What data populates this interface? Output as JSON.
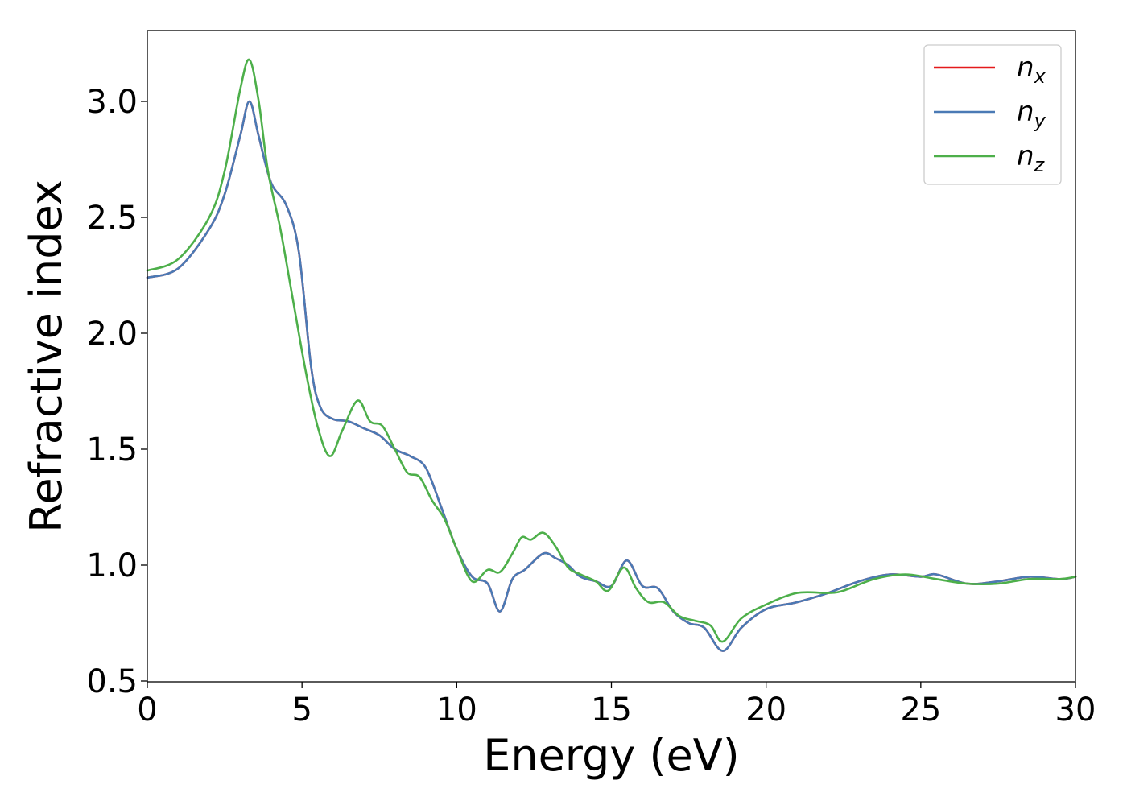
{
  "chart_data": {
    "type": "line",
    "xlabel": "Energy (eV)",
    "ylabel": "Refractive index",
    "xlim": [
      0,
      30
    ],
    "ylim": [
      0.5,
      3.3
    ],
    "xticks": [
      "0",
      "5",
      "10",
      "15",
      "20",
      "25",
      "30"
    ],
    "yticks": [
      "0.5",
      "1.0",
      "1.5",
      "2.0",
      "2.5",
      "3.0"
    ],
    "grid": false,
    "legend_position": "top-right",
    "series": [
      {
        "name": "n",
        "subscript": "x",
        "color": "#e41a1c",
        "x": [
          0,
          1,
          2,
          2.5,
          3,
          3.3,
          3.6,
          4.0,
          4.5,
          4.9,
          5.3,
          5.6,
          6.0,
          6.5,
          7.0,
          7.5,
          8.0,
          8.5,
          9.0,
          9.5,
          10.0,
          10.5,
          11.0,
          11.4,
          11.8,
          12.2,
          12.8,
          13.2,
          13.6,
          14.0,
          14.5,
          15.0,
          15.5,
          16.0,
          16.5,
          17.0,
          17.5,
          18.0,
          18.6,
          19.2,
          20.0,
          21.0,
          22.0,
          23.0,
          24.0,
          25.0,
          25.5,
          26.5,
          27.5,
          28.5,
          29.5,
          30
        ],
        "y": [
          2.24,
          2.28,
          2.45,
          2.6,
          2.85,
          3.0,
          2.85,
          2.65,
          2.55,
          2.35,
          1.85,
          1.68,
          1.63,
          1.62,
          1.59,
          1.56,
          1.5,
          1.47,
          1.42,
          1.25,
          1.07,
          0.95,
          0.92,
          0.8,
          0.94,
          0.98,
          1.05,
          1.03,
          1.0,
          0.95,
          0.93,
          0.91,
          1.02,
          0.91,
          0.9,
          0.8,
          0.75,
          0.73,
          0.63,
          0.73,
          0.81,
          0.84,
          0.88,
          0.93,
          0.96,
          0.95,
          0.96,
          0.92,
          0.93,
          0.95,
          0.94,
          0.95
        ]
      },
      {
        "name": "n",
        "subscript": "y",
        "color": "#4a7ab5",
        "x": [
          0,
          1,
          2,
          2.5,
          3,
          3.3,
          3.6,
          4.0,
          4.5,
          4.9,
          5.3,
          5.6,
          6.0,
          6.5,
          7.0,
          7.5,
          8.0,
          8.5,
          9.0,
          9.5,
          10.0,
          10.5,
          11.0,
          11.4,
          11.8,
          12.2,
          12.8,
          13.2,
          13.6,
          14.0,
          14.5,
          15.0,
          15.5,
          16.0,
          16.5,
          17.0,
          17.5,
          18.0,
          18.6,
          19.2,
          20.0,
          21.0,
          22.0,
          23.0,
          24.0,
          25.0,
          25.5,
          26.5,
          27.5,
          28.5,
          29.5,
          30
        ],
        "y": [
          2.24,
          2.28,
          2.45,
          2.6,
          2.85,
          3.0,
          2.85,
          2.65,
          2.55,
          2.35,
          1.85,
          1.68,
          1.63,
          1.62,
          1.59,
          1.56,
          1.5,
          1.47,
          1.42,
          1.25,
          1.07,
          0.95,
          0.92,
          0.8,
          0.94,
          0.98,
          1.05,
          1.03,
          1.0,
          0.95,
          0.93,
          0.91,
          1.02,
          0.91,
          0.9,
          0.8,
          0.75,
          0.73,
          0.63,
          0.73,
          0.81,
          0.84,
          0.88,
          0.93,
          0.96,
          0.95,
          0.96,
          0.92,
          0.93,
          0.95,
          0.94,
          0.95
        ]
      },
      {
        "name": "n",
        "subscript": "z",
        "color": "#4daf4a",
        "x": [
          0,
          1,
          2,
          2.5,
          3,
          3.3,
          3.6,
          3.9,
          4.3,
          4.7,
          5.1,
          5.5,
          5.9,
          6.3,
          6.8,
          7.2,
          7.6,
          8.0,
          8.4,
          8.8,
          9.2,
          9.6,
          10.0,
          10.5,
          11.0,
          11.4,
          11.8,
          12.1,
          12.4,
          12.8,
          13.2,
          13.6,
          14.0,
          14.5,
          14.9,
          15.4,
          15.8,
          16.2,
          16.7,
          17.2,
          17.7,
          18.2,
          18.6,
          19.2,
          20.0,
          21.0,
          22.0,
          22.5,
          23.5,
          24.5,
          25.5,
          26.5,
          27.5,
          28.5,
          29.5,
          30
        ],
        "y": [
          2.27,
          2.32,
          2.5,
          2.7,
          3.05,
          3.18,
          3.0,
          2.7,
          2.45,
          2.15,
          1.85,
          1.6,
          1.47,
          1.58,
          1.71,
          1.62,
          1.6,
          1.5,
          1.4,
          1.38,
          1.28,
          1.2,
          1.07,
          0.93,
          0.98,
          0.97,
          1.05,
          1.12,
          1.11,
          1.14,
          1.08,
          0.99,
          0.96,
          0.93,
          0.89,
          0.99,
          0.9,
          0.84,
          0.84,
          0.78,
          0.76,
          0.74,
          0.67,
          0.77,
          0.83,
          0.88,
          0.88,
          0.89,
          0.94,
          0.96,
          0.94,
          0.92,
          0.92,
          0.94,
          0.94,
          0.95
        ]
      }
    ]
  }
}
